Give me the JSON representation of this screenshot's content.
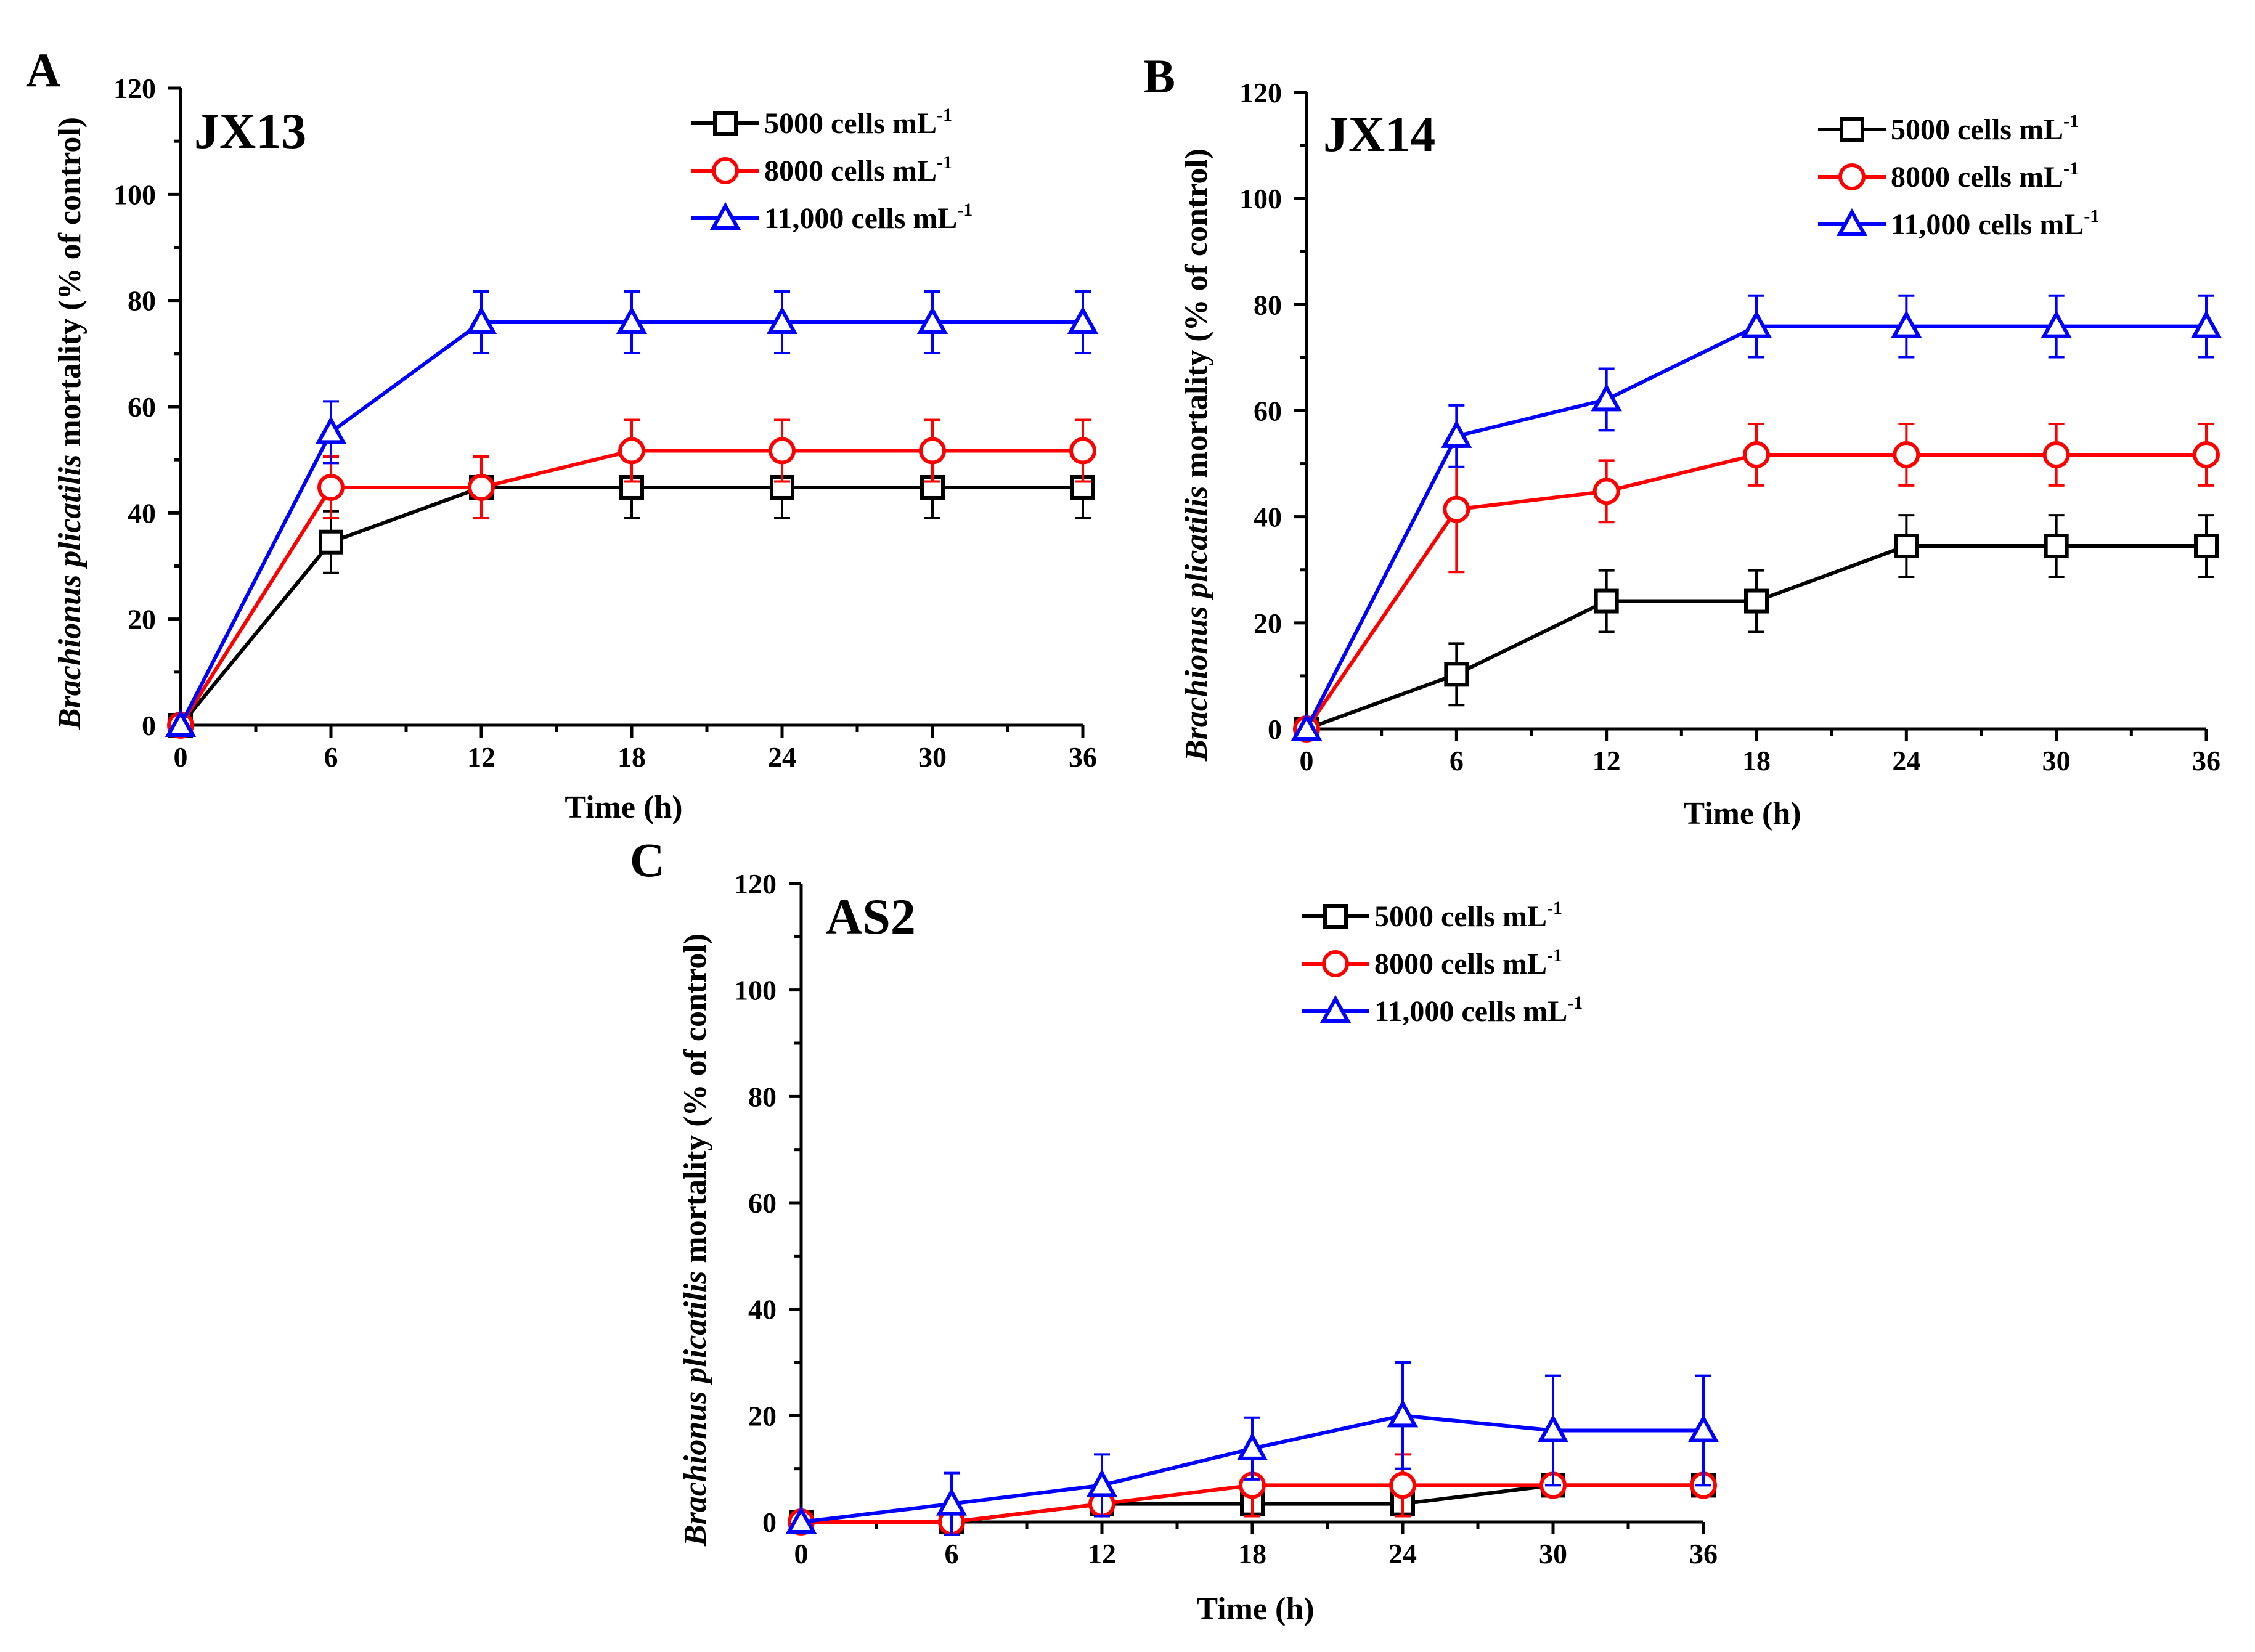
{
  "chart_data": [
    {
      "type": "line",
      "panel_label": "A",
      "title": "JX13",
      "xlabel": "Time (h)",
      "ylabel_italic": "Brachionus plicatilis",
      "ylabel_rest": " mortality (% of control)",
      "x": [
        0,
        6,
        12,
        18,
        24,
        30,
        36
      ],
      "x_ticks": [
        "0",
        "6",
        "12",
        "18",
        "24",
        "30",
        "36"
      ],
      "y_ticks": [
        "0",
        "20",
        "40",
        "60",
        "80",
        "100",
        "120"
      ],
      "xlim": [
        0,
        36
      ],
      "ylim": [
        0,
        120
      ],
      "legend_position": "top-right",
      "series": [
        {
          "name": "5000 cells mL",
          "superscript": "-1",
          "color": "#000000",
          "marker": "square",
          "values": [
            0,
            34.5,
            44.8,
            44.8,
            44.8,
            44.8,
            44.8
          ],
          "errors": [
            0,
            5.8,
            0,
            5.8,
            5.8,
            5.8,
            5.8
          ]
        },
        {
          "name": "8000 cells mL",
          "superscript": "-1",
          "color": "#ff0000",
          "marker": "circle",
          "values": [
            0,
            44.8,
            44.8,
            51.7,
            51.7,
            51.7,
            51.7
          ],
          "errors": [
            0,
            5.8,
            5.8,
            5.8,
            5.8,
            5.8,
            5.8
          ]
        },
        {
          "name": "11,000 cells mL",
          "superscript": "-1",
          "color": "#0000ff",
          "marker": "triangle",
          "values": [
            0,
            55.2,
            75.9,
            75.9,
            75.9,
            75.9,
            75.9
          ],
          "errors": [
            0,
            5.8,
            5.8,
            5.8,
            5.8,
            5.8,
            5.8
          ]
        }
      ]
    },
    {
      "type": "line",
      "panel_label": "B",
      "title": "JX14",
      "xlabel": "Time (h)",
      "ylabel_italic": "Brachionus plicatilis",
      "ylabel_rest": " mortality (% of control)",
      "x": [
        0,
        6,
        12,
        18,
        24,
        30,
        36
      ],
      "x_ticks": [
        "0",
        "6",
        "12",
        "18",
        "24",
        "30",
        "36"
      ],
      "y_ticks": [
        "0",
        "20",
        "40",
        "60",
        "80",
        "100",
        "120"
      ],
      "xlim": [
        0,
        36
      ],
      "ylim": [
        0,
        120
      ],
      "legend_position": "top-right",
      "series": [
        {
          "name": "5000 cells mL",
          "superscript": "-1",
          "color": "#000000",
          "marker": "square",
          "values": [
            0,
            10.3,
            24.1,
            24.1,
            34.5,
            34.5,
            34.5
          ],
          "errors": [
            0,
            5.8,
            5.8,
            5.8,
            5.8,
            5.8,
            5.8
          ]
        },
        {
          "name": "8000 cells mL",
          "superscript": "-1",
          "color": "#ff0000",
          "marker": "circle",
          "values": [
            0,
            41.4,
            44.8,
            51.7,
            51.7,
            51.7,
            51.7
          ],
          "errors": [
            0,
            11.8,
            5.8,
            5.8,
            5.8,
            5.8,
            5.8
          ]
        },
        {
          "name": "11,000 cells mL",
          "superscript": "-1",
          "color": "#0000ff",
          "marker": "triangle",
          "values": [
            0,
            55.2,
            62.1,
            75.9,
            75.9,
            75.9,
            75.9
          ],
          "errors": [
            0,
            5.8,
            5.8,
            5.8,
            5.8,
            5.8,
            5.8
          ]
        }
      ]
    },
    {
      "type": "line",
      "panel_label": "C",
      "title": "AS2",
      "xlabel": "Time (h)",
      "ylabel_italic": "Brachionus plicatilis",
      "ylabel_rest": " mortality (% of control)",
      "x": [
        0,
        6,
        12,
        18,
        24,
        30,
        36
      ],
      "x_ticks": [
        "0",
        "6",
        "12",
        "18",
        "24",
        "30",
        "36"
      ],
      "y_ticks": [
        "0",
        "20",
        "40",
        "60",
        "80",
        "100",
        "120"
      ],
      "xlim": [
        0,
        36
      ],
      "ylim": [
        0,
        120
      ],
      "legend_position": "top-right",
      "series": [
        {
          "name": "5000 cells mL",
          "superscript": "-1",
          "color": "#000000",
          "marker": "square",
          "values": [
            0,
            0,
            3.4,
            3.4,
            3.4,
            6.9,
            6.9
          ],
          "errors": [
            0,
            0,
            0,
            0,
            0,
            0,
            0
          ]
        },
        {
          "name": "8000 cells mL",
          "superscript": "-1",
          "color": "#ff0000",
          "marker": "circle",
          "values": [
            0,
            0,
            3.4,
            6.9,
            6.9,
            6.9,
            6.9
          ],
          "errors": [
            0,
            0,
            0,
            5.8,
            5.8,
            0,
            0
          ]
        },
        {
          "name": "11,000 cells mL",
          "superscript": "-1",
          "color": "#0000ff",
          "marker": "triangle",
          "values": [
            0,
            3.4,
            6.9,
            13.8,
            20.0,
            17.2,
            17.2
          ],
          "errors": [
            0,
            5.8,
            5.8,
            5.8,
            10.0,
            10.3,
            10.3
          ]
        }
      ]
    }
  ]
}
